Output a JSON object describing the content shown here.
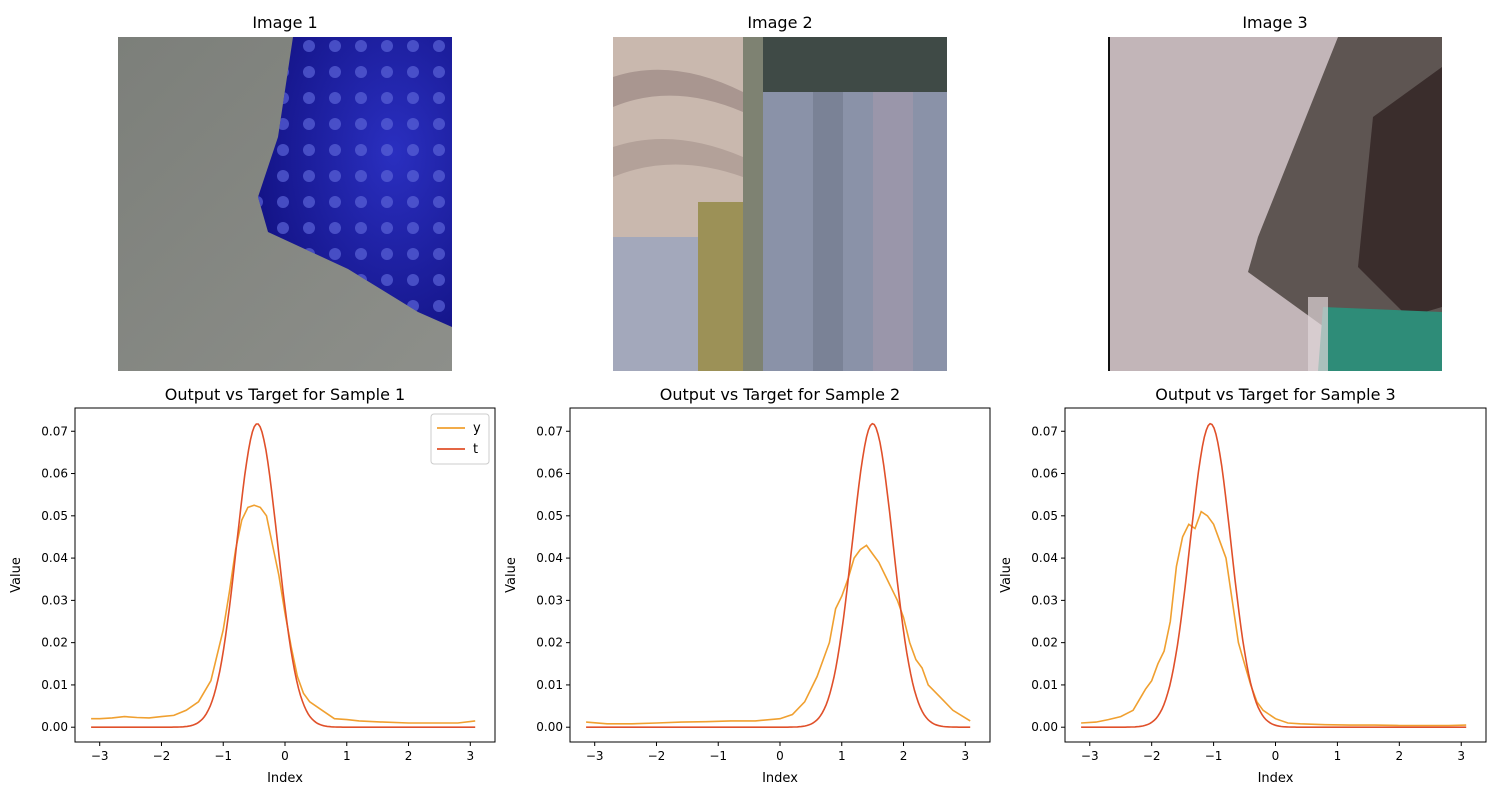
{
  "images": [
    {
      "title": "Image 1",
      "description_icon": "photo-image"
    },
    {
      "title": "Image 2",
      "description_icon": "photo-image"
    },
    {
      "title": "Image 3",
      "description_icon": "photo-image"
    }
  ],
  "colors": {
    "y": "#f0a030",
    "t": "#e0502a",
    "axis": "#000000"
  },
  "chart_data": [
    {
      "type": "line",
      "title": "Output vs Target for Sample 1",
      "xlabel": "Index",
      "ylabel": "Value",
      "xlim": [
        -3.4,
        3.4
      ],
      "ylim": [
        -0.0035,
        0.0755
      ],
      "xticks": [
        -3,
        -2,
        -1,
        0,
        1,
        2,
        3
      ],
      "yticks": [
        0.0,
        0.01,
        0.02,
        0.03,
        0.04,
        0.05,
        0.06,
        0.07
      ],
      "legend": {
        "position": "top-right",
        "entries": [
          "y",
          "t"
        ]
      },
      "series": [
        {
          "name": "y",
          "x": [
            -3.14,
            -3.0,
            -2.8,
            -2.6,
            -2.4,
            -2.2,
            -2.0,
            -1.8,
            -1.6,
            -1.4,
            -1.2,
            -1.0,
            -0.9,
            -0.8,
            -0.7,
            -0.6,
            -0.5,
            -0.4,
            -0.3,
            -0.2,
            -0.1,
            0.0,
            0.1,
            0.2,
            0.3,
            0.4,
            0.6,
            0.8,
            1.0,
            1.2,
            1.6,
            2.0,
            2.4,
            2.8,
            3.08
          ],
          "y": [
            0.002,
            0.002,
            0.0022,
            0.0025,
            0.0023,
            0.0022,
            0.0025,
            0.0028,
            0.004,
            0.006,
            0.011,
            0.023,
            0.032,
            0.042,
            0.049,
            0.052,
            0.0525,
            0.052,
            0.05,
            0.043,
            0.036,
            0.027,
            0.019,
            0.012,
            0.008,
            0.006,
            0.004,
            0.002,
            0.0018,
            0.0015,
            0.0012,
            0.001,
            0.001,
            0.001,
            0.0015
          ]
        },
        {
          "name": "t",
          "mu": -0.45,
          "sigma": 0.33,
          "peak": 0.0718,
          "x_range": [
            -3.14,
            3.08
          ]
        }
      ]
    },
    {
      "type": "line",
      "title": "Output vs Target for Sample 2",
      "xlabel": "Index",
      "ylabel": "Value",
      "xlim": [
        -3.4,
        3.4
      ],
      "ylim": [
        -0.0035,
        0.0755
      ],
      "xticks": [
        -3,
        -2,
        -1,
        0,
        1,
        2,
        3
      ],
      "yticks": [
        0.0,
        0.01,
        0.02,
        0.03,
        0.04,
        0.05,
        0.06,
        0.07
      ],
      "series": [
        {
          "name": "y",
          "x": [
            -3.14,
            -2.8,
            -2.4,
            -2.0,
            -1.6,
            -1.2,
            -0.8,
            -0.4,
            0.0,
            0.2,
            0.4,
            0.6,
            0.8,
            0.9,
            1.0,
            1.1,
            1.2,
            1.3,
            1.4,
            1.5,
            1.6,
            1.7,
            1.8,
            1.9,
            2.0,
            2.1,
            2.2,
            2.3,
            2.4,
            2.6,
            2.8,
            3.08
          ],
          "y": [
            0.0012,
            0.0008,
            0.0008,
            0.001,
            0.0012,
            0.0013,
            0.0015,
            0.0015,
            0.002,
            0.003,
            0.006,
            0.012,
            0.02,
            0.028,
            0.031,
            0.035,
            0.04,
            0.042,
            0.043,
            0.041,
            0.039,
            0.036,
            0.033,
            0.03,
            0.026,
            0.02,
            0.016,
            0.014,
            0.01,
            0.007,
            0.004,
            0.0015
          ]
        },
        {
          "name": "t",
          "mu": 1.5,
          "sigma": 0.33,
          "peak": 0.0718,
          "x_range": [
            -3.14,
            3.08
          ]
        }
      ]
    },
    {
      "type": "line",
      "title": "Output vs Target for Sample 3",
      "xlabel": "Index",
      "ylabel": "Value",
      "xlim": [
        -3.4,
        3.4
      ],
      "ylim": [
        -0.0035,
        0.0755
      ],
      "xticks": [
        -3,
        -2,
        -1,
        0,
        1,
        2,
        3
      ],
      "yticks": [
        0.0,
        0.01,
        0.02,
        0.03,
        0.04,
        0.05,
        0.06,
        0.07
      ],
      "series": [
        {
          "name": "y",
          "x": [
            -3.14,
            -2.9,
            -2.7,
            -2.5,
            -2.3,
            -2.1,
            -2.0,
            -1.9,
            -1.8,
            -1.7,
            -1.6,
            -1.5,
            -1.4,
            -1.3,
            -1.2,
            -1.1,
            -1.0,
            -0.9,
            -0.8,
            -0.7,
            -0.6,
            -0.5,
            -0.4,
            -0.3,
            -0.2,
            -0.1,
            0.0,
            0.2,
            0.4,
            0.8,
            1.2,
            1.6,
            2.0,
            2.4,
            2.8,
            3.08
          ],
          "y": [
            0.001,
            0.0012,
            0.0018,
            0.0025,
            0.004,
            0.009,
            0.011,
            0.015,
            0.018,
            0.025,
            0.038,
            0.045,
            0.048,
            0.047,
            0.051,
            0.05,
            0.048,
            0.044,
            0.04,
            0.03,
            0.02,
            0.015,
            0.01,
            0.006,
            0.004,
            0.003,
            0.002,
            0.001,
            0.0008,
            0.0006,
            0.0005,
            0.0005,
            0.0004,
            0.0004,
            0.0004,
            0.0005
          ]
        },
        {
          "name": "t",
          "mu": -1.05,
          "sigma": 0.33,
          "peak": 0.0718,
          "x_range": [
            -3.14,
            3.08
          ]
        }
      ]
    }
  ]
}
